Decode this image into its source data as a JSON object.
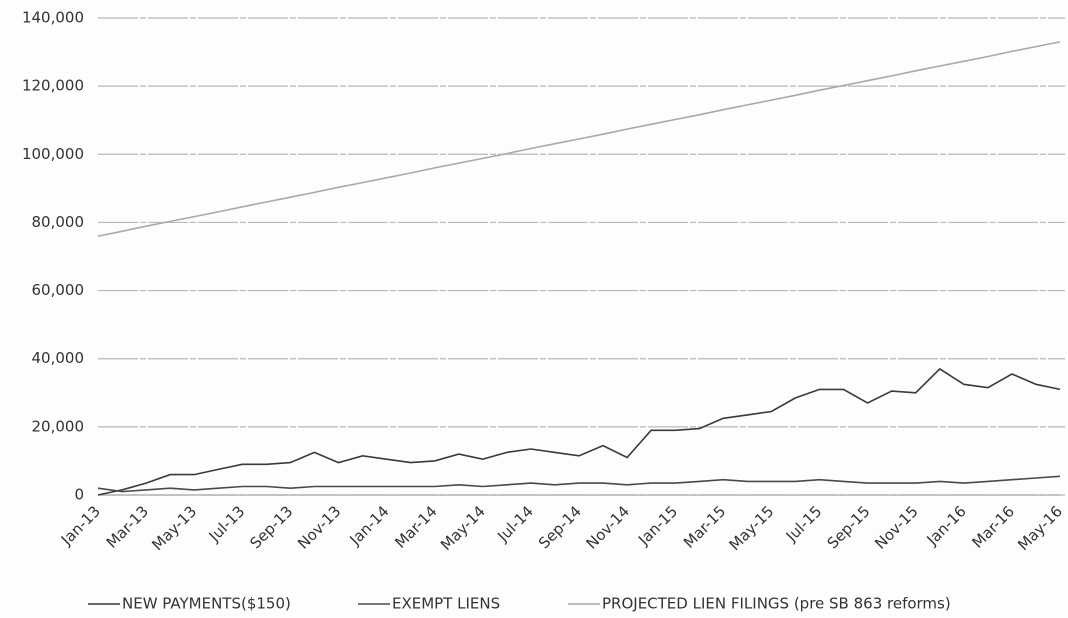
{
  "chart_data": {
    "type": "line",
    "categories": [
      "Jan-13",
      null,
      "Mar-13",
      null,
      "May-13",
      null,
      "Jul-13",
      null,
      "Sep-13",
      null,
      "Nov-13",
      null,
      "Jan-14",
      null,
      "Mar-14",
      null,
      "May-14",
      null,
      "Jul-14",
      null,
      "Sep-14",
      null,
      "Nov-14",
      null,
      "Jan-15",
      null,
      "Mar-15",
      null,
      "May-15",
      null,
      "Jul-15",
      null,
      "Sep-15",
      null,
      "Nov-15",
      null,
      "Jan-16",
      null,
      "Mar-16",
      null,
      "May-16"
    ],
    "series": [
      {
        "name": "NEW PAYMENTS($150)",
        "color": "#3a3a3a",
        "values": [
          0,
          1500,
          3500,
          6000,
          6000,
          7500,
          9000,
          9000,
          9500,
          12500,
          9500,
          11500,
          10500,
          9500,
          10000,
          12000,
          10500,
          12500,
          13500,
          12500,
          11500,
          14500,
          11000,
          19000,
          19000,
          19500,
          22500,
          23500,
          24500,
          28500,
          31000,
          31000,
          27000,
          30500,
          30000,
          37000,
          32500,
          31500,
          35500,
          32500,
          31000
        ]
      },
      {
        "name": "EXEMPT LIENS",
        "color": "#4a4a4a",
        "values": [
          2000,
          1000,
          1500,
          2000,
          1500,
          2000,
          2500,
          2500,
          2000,
          2500,
          2500,
          2500,
          2500,
          2500,
          2500,
          3000,
          2500,
          3000,
          3500,
          3000,
          3500,
          3500,
          3000,
          3500,
          3500,
          4000,
          4500,
          4000,
          4000,
          4000,
          4500,
          4000,
          3500,
          3500,
          3500,
          4000,
          3500,
          4000,
          4500,
          5000,
          5500
        ]
      },
      {
        "name": "PROJECTED LIEN FILINGS (pre SB 863 reforms)",
        "color": "#a9a9a9",
        "values": [
          76000,
          77400,
          78900,
          80300,
          81700,
          83100,
          84600,
          86000,
          87400,
          88800,
          90300,
          91700,
          93100,
          94500,
          96000,
          97400,
          98800,
          100200,
          101700,
          103100,
          104500,
          105900,
          107400,
          108800,
          110200,
          111600,
          113100,
          114500,
          115900,
          117300,
          118800,
          120200,
          121600,
          123000,
          124500,
          125900,
          127300,
          128700,
          130200,
          131600,
          133000
        ]
      }
    ],
    "ylim": [
      0,
      140000
    ],
    "yticks": [
      0,
      {
        "value": 20000,
        "label": "20,000"
      },
      {
        "value": 40000,
        "label": "40,000"
      },
      {
        "value": 60000,
        "label": "60,000"
      },
      {
        "value": 80000,
        "label": "80,000"
      },
      {
        "value": 100000,
        "label": "100,000"
      },
      {
        "value": 120000,
        "label": "120,000"
      },
      {
        "value": 140000,
        "label": "140,000"
      }
    ],
    "grid": true,
    "legend": "bottom"
  }
}
